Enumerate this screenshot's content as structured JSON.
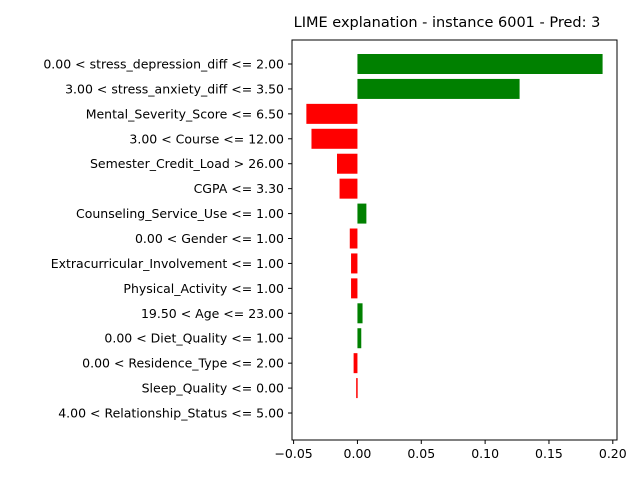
{
  "chart_data": {
    "type": "bar",
    "orientation": "horizontal",
    "title": "LIME explanation - instance 6001 - Pred: 3",
    "xlabel": "",
    "ylabel": "",
    "xlim": [
      -0.05,
      0.2
    ],
    "xticks": [
      "−0.05",
      "0.00",
      "0.05",
      "0.10",
      "0.15",
      "0.20"
    ],
    "xtick_values": [
      -0.05,
      0.0,
      0.05,
      0.1,
      0.15,
      0.2
    ],
    "grid": false,
    "legend": "none",
    "positive_color": "#008000",
    "negative_color": "#ff0000",
    "categories": [
      "0.00 < stress_depression_diff <= 2.00",
      "3.00 < stress_anxiety_diff <= 3.50",
      "Mental_Severity_Score <= 6.50",
      "3.00 < Course <= 12.00",
      "Semester_Credit_Load > 26.00",
      "CGPA <= 3.30",
      "Counseling_Service_Use <= 1.00",
      "0.00 < Gender <= 1.00",
      "Extracurricular_Involvement <= 1.00",
      "Physical_Activity <= 1.00",
      "19.50 < Age <= 23.00",
      "0.00 < Diet_Quality <= 1.00",
      "0.00 < Residence_Type <= 2.00",
      "Sleep_Quality <= 0.00",
      "4.00 < Relationship_Status <= 5.00"
    ],
    "values": [
      0.192,
      0.127,
      -0.04,
      -0.036,
      -0.016,
      -0.014,
      0.007,
      -0.006,
      -0.005,
      -0.005,
      0.004,
      0.003,
      -0.003,
      -0.001,
      0.0
    ]
  }
}
